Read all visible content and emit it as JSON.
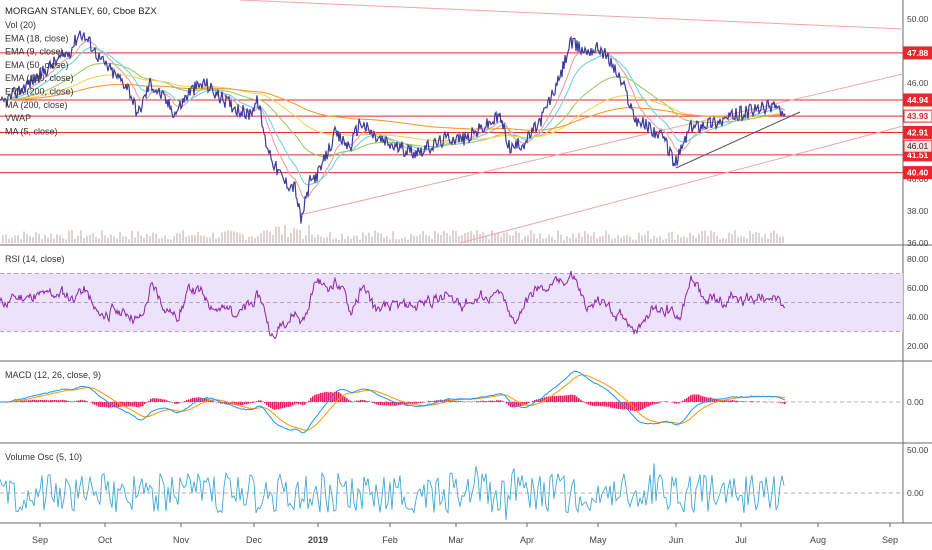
{
  "chart_data": {
    "type": "line",
    "symbol_title": "MORGAN STANLEY, 60, Cboe BZX",
    "indicator_labels": [
      "Vol (20)",
      "EMA (18, close)",
      "EMA (9, close)",
      "EMA (50, close)",
      "EMA (100, close)",
      "EMA (200, close)",
      "MA (200, close)",
      "VWAP",
      "MA (5, close)"
    ],
    "x_ticks": [
      "Sep",
      "Oct",
      "Nov",
      "Dec",
      "2019",
      "Feb",
      "Mar",
      "Apr",
      "May",
      "Jun",
      "Jul",
      "Aug",
      "Sep"
    ],
    "price_axis": {
      "ticks": [
        "50.00",
        "48.00",
        "46.00",
        "44.00",
        "42.00",
        "40.00",
        "38.00",
        "36.00"
      ],
      "ylim": [
        36,
        50.5
      ]
    },
    "price_levels": [
      {
        "label": "47.88",
        "value": 47.88,
        "color": "#e8262d"
      },
      {
        "label": "44.94",
        "value": 44.94,
        "color": "#e8262d"
      },
      {
        "label": "43.93",
        "value": 43.93,
        "color": "#e8262d"
      },
      {
        "label": "42.91",
        "value": 42.91,
        "color": "#e8262d"
      },
      {
        "label": "41.51",
        "value": 41.51,
        "color": "#e8262d"
      },
      {
        "label": "40.40",
        "value": 40.4,
        "color": "#e8262d"
      }
    ],
    "current_price": {
      "label": "46.01",
      "color": "#e8262d"
    },
    "price_series_keypoints": [
      [
        0,
        44.6
      ],
      [
        25,
        45.8
      ],
      [
        40,
        46.5
      ],
      [
        55,
        47.3
      ],
      [
        70,
        48.0
      ],
      [
        80,
        49.2
      ],
      [
        90,
        48.5
      ],
      [
        100,
        47.5
      ],
      [
        115,
        46.5
      ],
      [
        128,
        45.8
      ],
      [
        138,
        44.0
      ],
      [
        150,
        46.0
      ],
      [
        162,
        45.2
      ],
      [
        175,
        44.1
      ],
      [
        190,
        45.5
      ],
      [
        205,
        46.0
      ],
      [
        218,
        45.2
      ],
      [
        232,
        44.6
      ],
      [
        248,
        44.0
      ],
      [
        258,
        44.9
      ],
      [
        265,
        42.5
      ],
      [
        275,
        40.8
      ],
      [
        285,
        39.8
      ],
      [
        295,
        39.5
      ],
      [
        301,
        37.4
      ],
      [
        310,
        39.8
      ],
      [
        320,
        40.5
      ],
      [
        335,
        42.8
      ],
      [
        350,
        42.0
      ],
      [
        360,
        43.6
      ],
      [
        375,
        42.6
      ],
      [
        395,
        42.0
      ],
      [
        415,
        41.7
      ],
      [
        430,
        42.0
      ],
      [
        448,
        42.6
      ],
      [
        465,
        42.5
      ],
      [
        480,
        43.1
      ],
      [
        500,
        43.9
      ],
      [
        510,
        41.9
      ],
      [
        525,
        42.3
      ],
      [
        540,
        43.6
      ],
      [
        560,
        46.3
      ],
      [
        570,
        48.5
      ],
      [
        585,
        48.0
      ],
      [
        600,
        48.2
      ],
      [
        612,
        47.2
      ],
      [
        625,
        45.6
      ],
      [
        635,
        43.8
      ],
      [
        650,
        43.2
      ],
      [
        665,
        42.4
      ],
      [
        675,
        40.9
      ],
      [
        690,
        43.2
      ],
      [
        705,
        43.5
      ],
      [
        720,
        43.6
      ],
      [
        740,
        44.1
      ],
      [
        755,
        44.3
      ],
      [
        768,
        44.5
      ],
      [
        775,
        44.7
      ],
      [
        785,
        43.8
      ]
    ],
    "rsi": {
      "label": "RSI (14, close)",
      "ticks": [
        "80.00",
        "60.00",
        "40.00",
        "20.00"
      ],
      "band": [
        30,
        70
      ]
    },
    "macd": {
      "label": "MACD (12, 26, close, 9)",
      "ticks": [
        "0.00"
      ]
    },
    "volume_osc": {
      "label": "Volume Osc (5, 10)",
      "ticks": [
        "50.00",
        "0.00"
      ]
    },
    "colors": {
      "price": "#3b3b9a",
      "level_line": "#e8262d",
      "trendline": "#f4a6a6",
      "rsi_line": "#8e24aa",
      "rsi_band": "#e9ddfb",
      "macd_line": "#2196f3",
      "signal_line": "#ff9800",
      "hist": "#e91e63",
      "volosc": "#42a7d7",
      "ema_cyan": "#6ad5e0",
      "ema_green": "#9ccc65",
      "ema_yellow": "#f2d45c",
      "ema_orange": "#f49b3a",
      "ema_pink": "#e8a0a8"
    }
  }
}
